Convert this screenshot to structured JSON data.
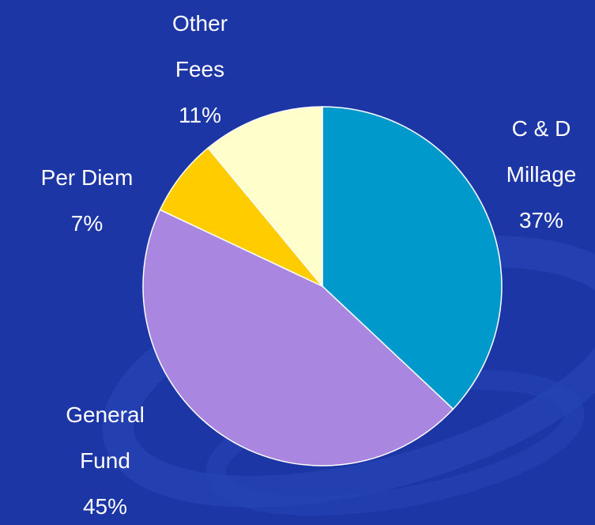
{
  "chart_data": {
    "type": "pie",
    "categories": [
      "C & D Millage",
      "General Fund",
      "Per Diem",
      "Other Fees"
    ],
    "values": [
      37,
      45,
      7,
      11
    ],
    "value_labels": [
      "37%",
      "45%",
      "7%",
      "11%"
    ],
    "colors": [
      "#0099cc",
      "#a986e0",
      "#ffcc00",
      "#ffffcc"
    ]
  }
}
